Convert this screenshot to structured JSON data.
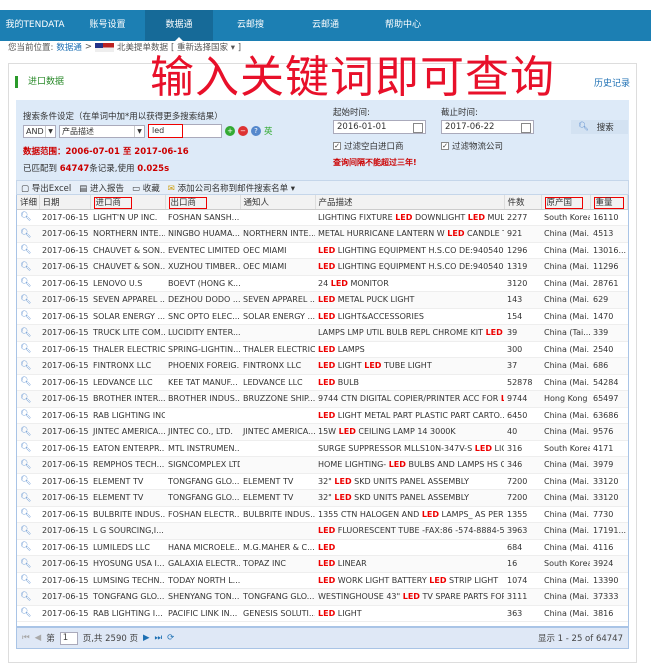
{
  "nav": {
    "items": [
      "我的TENDATA",
      "账号设置",
      "数据通",
      "云邮搜",
      "云邮通",
      "帮助中心"
    ],
    "active": 2
  },
  "breadcrumb": {
    "prefix": "您当前位置:",
    "link": "数据通",
    "sep": ">",
    "country": "北美提单数据",
    "reselect": "[ 重新选择国家 ▾ ]"
  },
  "panel": {
    "title": "进口数据",
    "history": "历史记录"
  },
  "overlay": "输入关键词即可查询",
  "search": {
    "label": "搜索条件设定（在单词中加*用以获得更多搜索结果）",
    "logic": "AND",
    "field": "产品描述",
    "keyword": "led",
    "lang": "英",
    "range_label": "数据范围：2006-07-01 至 2017-06-16",
    "count_prefix": "已匹配到",
    "count": "64747",
    "count_mid": "条记录,使用",
    "time": "0.025s",
    "start_label": "起始时间:",
    "start": "2016-01-01",
    "end_label": "截止时间:",
    "end": "2017-06-22",
    "filter1": "过滤空白进口商",
    "filter2": "过滤物流公司",
    "warning": "查询间隔不能超过三年!",
    "button": "搜索"
  },
  "toolbar": {
    "export": "导出Excel",
    "report": "进入报告",
    "favorite": "收藏",
    "add": "添加公司名称到邮件搜索名单 ▾"
  },
  "columns": [
    "详细",
    "日期",
    "进口商",
    "出口商",
    "通知人",
    "产品描述",
    "件数",
    "原产国",
    "重量"
  ],
  "rows": [
    [
      "2017-06-15",
      "LIGHT'N UP INC.",
      "FOSHAN SANSH...",
      "",
      "LIGHTING FIXTURE LED DOWNLIGHT LED MULT...",
      "2277",
      "South Korea",
      "16110"
    ],
    [
      "2017-06-15",
      "NORTHERN INTE...",
      "NINGBO HUAMA...",
      "NORTHERN INTE...",
      "METAL HURRICANE LANTERN W LED CANDLE T...",
      "921",
      "China (Mai...",
      "4513"
    ],
    [
      "2017-06-15",
      "CHAUVET & SON...",
      "EVENTEC LIMITED",
      "OEC MIAMI",
      "LED LIGHTING EQUIPMENT H.S.CO DE:9405409...",
      "1296",
      "China (Mai...",
      "13016..."
    ],
    [
      "2017-06-15",
      "CHAUVET & SON...",
      "XUZHOU TIMBER...",
      "OEC MIAMI",
      "LED LIGHTING EQUIPMENT H.S.CO DE:9405409...",
      "1319",
      "China (Mai...",
      "11296"
    ],
    [
      "2017-06-15",
      "LENOVO U.S",
      "BOEVT (HONG K...",
      "",
      "24 LED MONITOR",
      "3120",
      "China (Mai...",
      "28761"
    ],
    [
      "2017-06-15",
      "SEVEN APPAREL ...",
      "DEZHOU DODO ...",
      "SEVEN APPAREL ...",
      "LED METAL PUCK LIGHT",
      "143",
      "China (Mai...",
      "629"
    ],
    [
      "2017-06-15",
      "SOLAR ENERGY ...",
      "SNC OPTO ELEC...",
      "SOLAR ENERGY ...",
      "LED LIGHT&ACCESSORIES",
      "154",
      "China (Mai...",
      "1470"
    ],
    [
      "2017-06-15",
      "TRUCK LITE COM...",
      "LUCIDITY ENTER...",
      "",
      "LAMPS LMP UTIL BULB REPL CHROME KIT LED A...",
      "39",
      "China (Tai...",
      "339"
    ],
    [
      "2017-06-15",
      "THALER ELECTRIC",
      "SPRING-LIGHTIN...",
      "THALER ELECTRIC",
      "LED LAMPS",
      "300",
      "China (Mai...",
      "2540"
    ],
    [
      "2017-06-15",
      "FINTRONX LLC",
      "PHOENIX FOREIG...",
      "FINTRONX LLC",
      "LED LIGHT LED TUBE LIGHT",
      "37",
      "China (Mai...",
      "686"
    ],
    [
      "2017-06-15",
      "LEDVANCE LLC",
      "KEE TAT MANUF...",
      "LEDVANCE LLC",
      "LED BULB",
      "52878",
      "China (Mai...",
      "54284"
    ],
    [
      "2017-06-15",
      "BROTHER INTER...",
      "BROTHER INDUS...",
      "BRUZZONE SHIP...",
      "9744 CTN DIGITAL COPIER/PRINTER ACC FOR L...",
      "9744",
      "Hong Kong",
      "65497"
    ],
    [
      "2017-06-15",
      "RAB LIGHTING INC",
      "",
      "",
      "LED LIGHT METAL PART PLASTIC PART CARTO...",
      "6450",
      "China (Mai...",
      "63686"
    ],
    [
      "2017-06-15",
      "JINTEC AMERICA...",
      "JINTEC CO., LTD.",
      "JINTEC AMERICA...",
      "15W LED CEILING LAMP 14 3000K",
      "40",
      "China (Mai...",
      "9576"
    ],
    [
      "2017-06-15",
      "EATON ENTERPR...",
      "MTL INSTRUMEN...",
      "",
      "SURGE SUPPRESSOR MLLS10N-347V-S LED LIGH...",
      "316",
      "South Korea",
      "4171"
    ],
    [
      "2017-06-15",
      "REMPHOS TECH...",
      "SIGNCOMPLEX LTD",
      "",
      "HOME LIGHTING- LED BULBS AND LAMPS HS CO...",
      "346",
      "China (Mai...",
      "3979"
    ],
    [
      "2017-06-15",
      "ELEMENT TV",
      "TONGFANG GLO...",
      "ELEMENT TV",
      "32\" LED SKD UNITS PANEL ASSEMBLY",
      "7200",
      "China (Mai...",
      "33120"
    ],
    [
      "2017-06-15",
      "ELEMENT TV",
      "TONGFANG GLO...",
      "ELEMENT TV",
      "32\" LED SKD UNITS PANEL ASSEMBLY",
      "7200",
      "China (Mai...",
      "33120"
    ],
    [
      "2017-06-15",
      "BULBRITE INDUS...",
      "FOSHAN ELECTR...",
      "BULBRITE INDUS...",
      "1355 CTN HALOGEN AND LED LAMPS_ AS PER P...",
      "1355",
      "China (Mai...",
      "7730"
    ],
    [
      "2017-06-15",
      "L G SOURCING,I...",
      "",
      "",
      "LED FLUORESCENT TUBE -FAX:86 -574-8884-56...",
      "3963",
      "China (Mai...",
      "17191..."
    ],
    [
      "2017-06-15",
      "LUMILEDS LLC",
      "HANA MICROELE...",
      "M.G.MAHER & C...",
      "LED",
      "684",
      "China (Mai...",
      "4116"
    ],
    [
      "2017-06-15",
      "HYOSUNG USA I...",
      "GALAXIA ELECTR...",
      "TOPAZ INC",
      "LED LINEAR",
      "16",
      "South Korea",
      "3924"
    ],
    [
      "2017-06-15",
      "LUMSING TECHN...",
      "TODAY NORTH L...",
      "",
      "LED WORK LIGHT BATTERY LED STRIP LIGHT",
      "1074",
      "China (Mai...",
      "13390"
    ],
    [
      "2017-06-15",
      "TONGFANG GLO...",
      "SHENYANG TON...",
      "TONGFANG GLO...",
      "WESTINGHOUSE 43\" LED TV SPARE PARTS FOR...",
      "3111",
      "China (Mai...",
      "37333"
    ],
    [
      "2017-06-15",
      "RAB LIGHTING I...",
      "PACIFIC LINK IN...",
      "GENESIS SOLUTI...",
      "LED LIGHT",
      "363",
      "China (Mai...",
      "3816"
    ]
  ],
  "pager": {
    "page_prefix": "第",
    "page": "1",
    "page_suffix": "页,共 2590 页",
    "summary": "显示 1 - 25 of 64747"
  },
  "colors": {
    "nav": "#1c7fb3",
    "highlight": "#e00000"
  }
}
